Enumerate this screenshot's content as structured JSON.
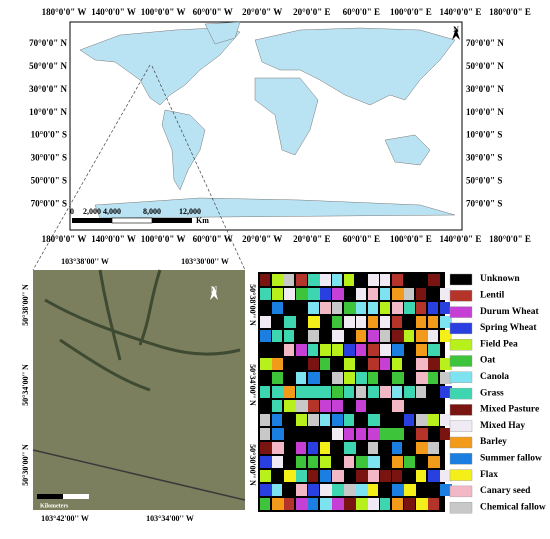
{
  "world_map": {
    "lon_labels": [
      "180°0'0\" W",
      "140°0'0\" W",
      "100°0'0\" W",
      "60°0'0\" W",
      "20°0'0\" W",
      "20°0'0\" E",
      "60°0'0\" E",
      "100°0'0\" E",
      "140°0'0\" E",
      "180°0'0\" E"
    ],
    "lat_labels": [
      "70°0'0\" N",
      "50°0'0\" N",
      "30°0'0\" N",
      "10°0'0\" N",
      "10°0'0\" S",
      "30°0'0\" S",
      "50°0'0\" S",
      "70°0'0\" S"
    ],
    "north": "N",
    "scale_labels": [
      "0",
      "2,000",
      "4,000",
      "8,000",
      "12,000"
    ],
    "scale_unit": "Km"
  },
  "satellite": {
    "top_labels": [
      "103°38'00'' W",
      "103°30'00'' W"
    ],
    "bottom_labels": [
      "103°42'00'' W",
      "103°34'00'' W"
    ],
    "lat_labels": [
      "50°38'00'' N",
      "50°34'00'' N",
      "50°30'00'' N"
    ],
    "north": "N",
    "scale_unit": "Kilometers"
  },
  "legend": [
    {
      "label": "Unknown",
      "color": "#000000"
    },
    {
      "label": "Lentil",
      "color": "#b5342a"
    },
    {
      "label": "Durum Wheat",
      "color": "#c640d6"
    },
    {
      "label": "Spring Wheat",
      "color": "#2a3fe0"
    },
    {
      "label": "Field Pea",
      "color": "#b7f01b"
    },
    {
      "label": "Oat",
      "color": "#3ec43a"
    },
    {
      "label": "Canola",
      "color": "#7de3f0"
    },
    {
      "label": "Grass",
      "color": "#3dd6b0"
    },
    {
      "label": "Mixed Pasture",
      "color": "#7a1410"
    },
    {
      "label": "Mixed Hay",
      "color": "#efeaf4"
    },
    {
      "label": "Barley",
      "color": "#f29b1a"
    },
    {
      "label": "Summer fallow",
      "color": "#1a7fe0"
    },
    {
      "label": "Flax",
      "color": "#f5ef19"
    },
    {
      "label": "Canary seed",
      "color": "#f3b8c6"
    },
    {
      "label": "Chemical fallow",
      "color": "#c8c8c8"
    }
  ]
}
